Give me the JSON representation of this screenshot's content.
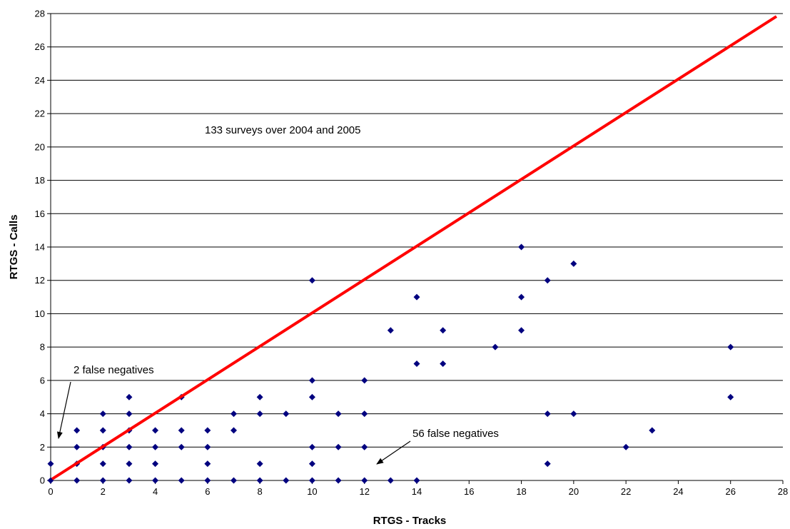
{
  "chart_data": {
    "type": "scatter",
    "title": "",
    "xlabel": "RTGS - Tracks",
    "ylabel": "RTGS - Calls",
    "xlim": [
      0,
      28
    ],
    "ylim": [
      0,
      28
    ],
    "x_ticks": [
      0,
      2,
      4,
      6,
      8,
      10,
      12,
      14,
      16,
      18,
      20,
      22,
      24,
      26,
      28
    ],
    "y_ticks": [
      0,
      2,
      4,
      6,
      8,
      10,
      12,
      14,
      16,
      18,
      20,
      22,
      24,
      26,
      28
    ],
    "grid": "horizontal",
    "marker_color": "#00007F",
    "reference_line": {
      "x": [
        0,
        28
      ],
      "y": [
        0,
        28
      ],
      "color": "#FF0000"
    },
    "points": [
      [
        0,
        0
      ],
      [
        0,
        1
      ],
      [
        1,
        0
      ],
      [
        1,
        1
      ],
      [
        1,
        2
      ],
      [
        1,
        3
      ],
      [
        2,
        0
      ],
      [
        2,
        1
      ],
      [
        2,
        2
      ],
      [
        2,
        3
      ],
      [
        2,
        4
      ],
      [
        3,
        0
      ],
      [
        3,
        1
      ],
      [
        3,
        2
      ],
      [
        3,
        3
      ],
      [
        3,
        4
      ],
      [
        3,
        5
      ],
      [
        4,
        0
      ],
      [
        4,
        1
      ],
      [
        4,
        2
      ],
      [
        4,
        3
      ],
      [
        5,
        0
      ],
      [
        5,
        2
      ],
      [
        5,
        3
      ],
      [
        5,
        5
      ],
      [
        6,
        0
      ],
      [
        6,
        1
      ],
      [
        6,
        2
      ],
      [
        6,
        3
      ],
      [
        7,
        0
      ],
      [
        7,
        3
      ],
      [
        7,
        4
      ],
      [
        8,
        0
      ],
      [
        8,
        1
      ],
      [
        8,
        4
      ],
      [
        8,
        5
      ],
      [
        9,
        0
      ],
      [
        9,
        4
      ],
      [
        10,
        0
      ],
      [
        10,
        1
      ],
      [
        10,
        2
      ],
      [
        10,
        5
      ],
      [
        10,
        6
      ],
      [
        10,
        12
      ],
      [
        11,
        0
      ],
      [
        11,
        2
      ],
      [
        11,
        4
      ],
      [
        12,
        0
      ],
      [
        12,
        2
      ],
      [
        12,
        4
      ],
      [
        12,
        6
      ],
      [
        13,
        0
      ],
      [
        13,
        9
      ],
      [
        14,
        0
      ],
      [
        14,
        7
      ],
      [
        14,
        11
      ],
      [
        15,
        7
      ],
      [
        15,
        9
      ],
      [
        17,
        8
      ],
      [
        18,
        9
      ],
      [
        18,
        11
      ],
      [
        18,
        14
      ],
      [
        19,
        1
      ],
      [
        19,
        4
      ],
      [
        19,
        12
      ],
      [
        20,
        4
      ],
      [
        20,
        13
      ],
      [
        22,
        2
      ],
      [
        23,
        3
      ],
      [
        26,
        5
      ],
      [
        26,
        8
      ]
    ],
    "annotations": {
      "surveys": "133 surveys over 2004 and 2005",
      "fn_left": "2 false negatives",
      "fn_right": "56 false negatives"
    }
  }
}
